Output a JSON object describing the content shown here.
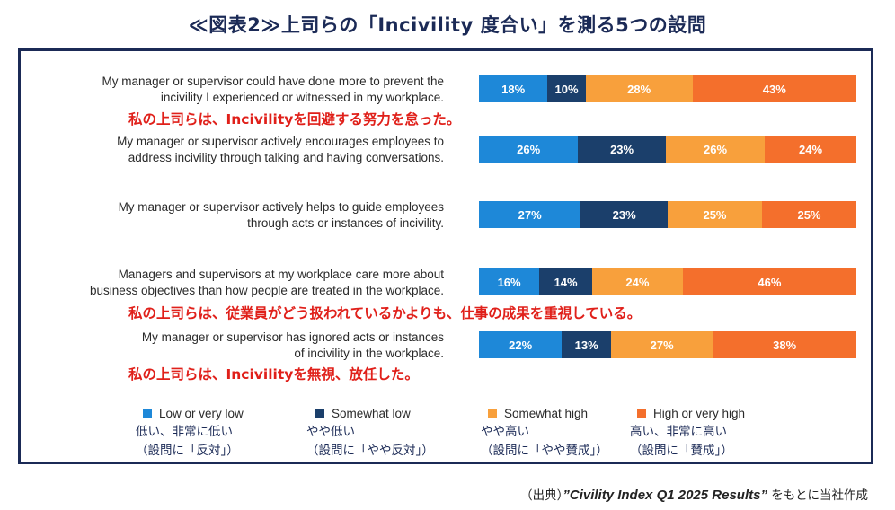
{
  "title": "≪図表2≫上司らの「Incivility 度合い」を測る5つの設問",
  "colors": {
    "low": "#1e88d8",
    "somewhat_low": "#1b3f6b",
    "somewhat_high": "#f8a03c",
    "high": "#f46f2c",
    "frame": "#1b2a56",
    "note": "#e0201a"
  },
  "chart_data": {
    "type": "bar",
    "orientation": "horizontal-stacked-100",
    "categories": [
      "My manager or supervisor could have done more to prevent the incivility I experienced or witnessed in my workplace.",
      "My manager or supervisor actively encourages employees to address incivility through talking and having conversations.",
      "My manager or supervisor actively helps to guide employees through acts or instances of incivility.",
      "Managers and supervisors at my workplace care more about business objectives than how people are treated in the workplace.",
      "My manager or supervisor has ignored acts or instances of incivility in the workplace."
    ],
    "series": [
      {
        "name": "Low or very low",
        "values": [
          18,
          26,
          27,
          16,
          22
        ]
      },
      {
        "name": "Somewhat low",
        "values": [
          10,
          23,
          23,
          14,
          13
        ]
      },
      {
        "name": "Somewhat high",
        "values": [
          28,
          26,
          25,
          24,
          27
        ]
      },
      {
        "name": "High or very high",
        "values": [
          43,
          24,
          25,
          46,
          38
        ]
      }
    ],
    "unit": "%"
  },
  "questions": [
    {
      "line1": "My manager or supervisor could have done more to prevent the",
      "line2": "incivility I experienced or witnessed in my workplace."
    },
    {
      "line1": "My manager or supervisor actively encourages employees to",
      "line2": "address incivility through talking and having conversations."
    },
    {
      "line1": "My manager or supervisor actively helps to guide employees",
      "line2": "through acts or instances of incivility."
    },
    {
      "line1": "Managers and supervisors at my workplace care more about",
      "line2": "business objectives than how people are treated in the workplace."
    },
    {
      "line1": "My manager or supervisor has ignored acts or instances",
      "line2": "of incivility in the workplace."
    }
  ],
  "notes": [
    "私の上司らは、Incivilityを回避する努力を怠った。",
    "私の上司らは、従業員がどう扱われているかよりも、仕事の成果を重視している。",
    "私の上司らは、Incivilityを無視、放任した。"
  ],
  "legend": [
    {
      "label": "Low or very low",
      "jp": "低い、非常に低い\n（設問に「反対」）"
    },
    {
      "label": "Somewhat low",
      "jp": "やや低い\n（設問に「やや反対」）"
    },
    {
      "label": "Somewhat high",
      "jp": "やや高い\n（設問に「やや賛成」）"
    },
    {
      "label": "High or very high",
      "jp": "高い、非常に高い\n（設問に「賛成」）"
    }
  ],
  "source": {
    "prefix": "（出典）",
    "title": "”Civility Index Q1 2025 Results”",
    "suffix": " をもとに当社作成"
  }
}
